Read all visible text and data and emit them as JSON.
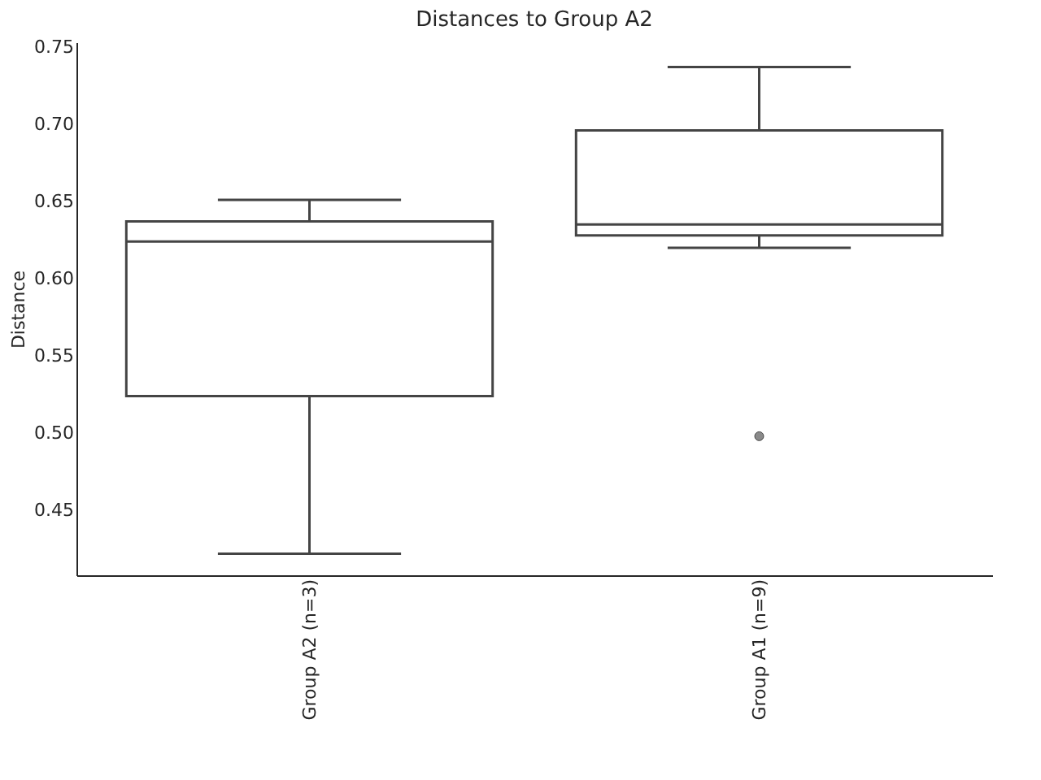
{
  "chart_data": {
    "type": "box",
    "title": "Distances to Group A2",
    "ylabel": "Distance",
    "categories": [
      "Group A2 (n=3)",
      "Group A1 (n=9)"
    ],
    "color": "#444444",
    "boxes": [
      {
        "low": 0.422,
        "q1": 0.524,
        "median": 0.624,
        "q3": 0.637,
        "high": 0.651
      },
      {
        "low": 0.62,
        "q1": 0.628,
        "median": 0.635,
        "q3": 0.696,
        "high": 0.737,
        "outliers": [
          0.498
        ]
      }
    ],
    "ylim": [
      0.408,
      0.753
    ],
    "yticks": [
      0.45,
      {
        "value": 0.5,
        "label": "0.50"
      },
      0.55,
      {
        "value": 0.6,
        "label": "0.60"
      },
      0.65,
      {
        "value": 0.7,
        "label": "0.70"
      },
      0.75
    ],
    "grid": false
  }
}
